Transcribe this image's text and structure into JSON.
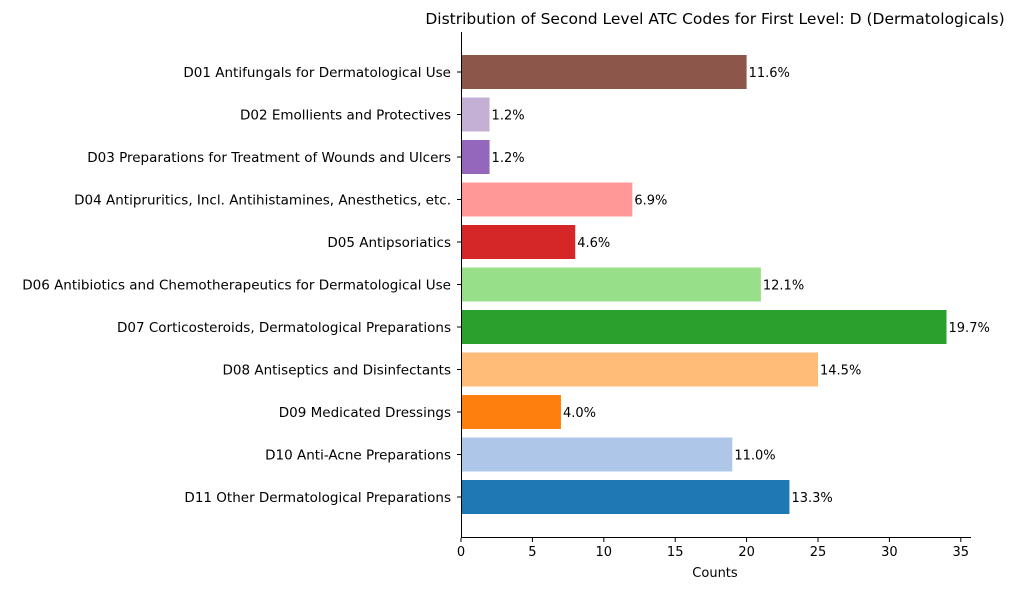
{
  "chart_data": {
    "type": "bar",
    "orientation": "horizontal",
    "title": "Distribution of Second Level ATC Codes for First Level: D (Dermatologicals)",
    "xlabel": "Counts",
    "ylabel": "",
    "xlim": [
      0,
      35.7
    ],
    "xticks": [
      0,
      5,
      10,
      15,
      20,
      25,
      30,
      35
    ],
    "grid": false,
    "categories": [
      "D01 Antifungals for Dermatological Use",
      "D02 Emollients and Protectives",
      "D03 Preparations for Treatment of Wounds and Ulcers",
      "D04 Antipruritics, Incl. Antihistamines, Anesthetics, etc.",
      "D05 Antipsoriatics",
      "D06 Antibiotics and Chemotherapeutics for Dermatological Use",
      "D07 Corticosteroids, Dermatological Preparations",
      "D08 Antiseptics and Disinfectants",
      "D09 Medicated Dressings",
      "D10 Anti-Acne Preparations",
      "D11 Other Dermatological Preparations"
    ],
    "values": [
      20,
      2,
      2,
      12,
      8,
      21,
      34,
      25,
      7,
      19,
      23
    ],
    "data_labels": [
      "11.6%",
      "1.2%",
      "1.2%",
      "6.9%",
      "4.6%",
      "12.1%",
      "19.7%",
      "14.5%",
      "4.0%",
      "11.0%",
      "13.3%"
    ],
    "colors": [
      "#8c564b",
      "#c5b0d5",
      "#9467bd",
      "#ff9896",
      "#d62728",
      "#98df8a",
      "#2ca02c",
      "#ffbb78",
      "#ff7f0e",
      "#aec7e8",
      "#1f77b4"
    ]
  }
}
